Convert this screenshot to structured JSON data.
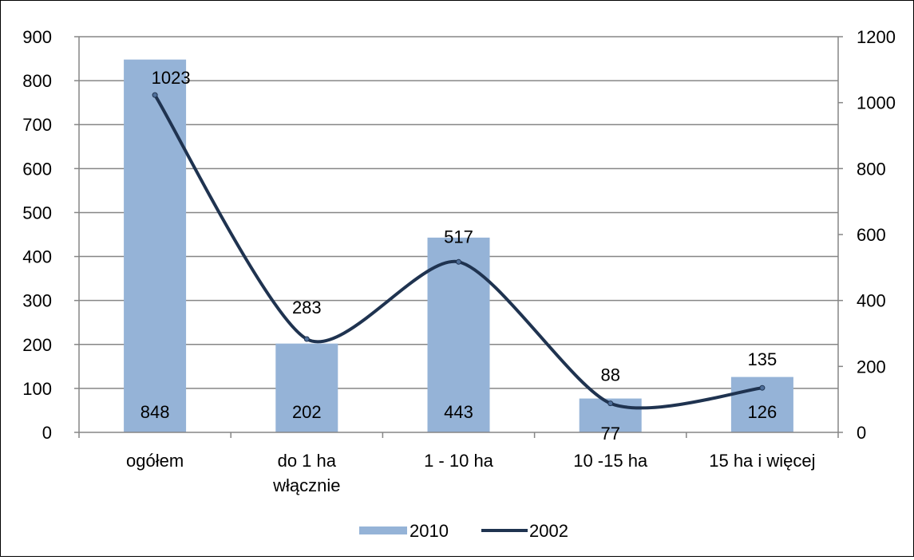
{
  "chart_data": {
    "type": "bar",
    "categories": [
      "ogółem",
      "do 1 ha\nwłącznie",
      "1 - 10 ha",
      "10 -15 ha",
      "15 ha i więcej"
    ],
    "series": [
      {
        "name": "2010",
        "type": "bar",
        "axis": "left",
        "values": [
          848,
          202,
          443,
          77,
          126
        ]
      },
      {
        "name": "2002",
        "type": "line",
        "axis": "right",
        "values": [
          1023,
          283,
          517,
          88,
          135
        ]
      }
    ],
    "y_left": {
      "min": 0,
      "max": 900,
      "step": 100
    },
    "y_right": {
      "min": 0,
      "max": 1200,
      "step": 200
    },
    "grid": true,
    "legend_position": "bottom",
    "colors": {
      "bar": "#95b3d7",
      "line": "#1f3350",
      "grid": "#868686",
      "axis": "#868686"
    }
  }
}
